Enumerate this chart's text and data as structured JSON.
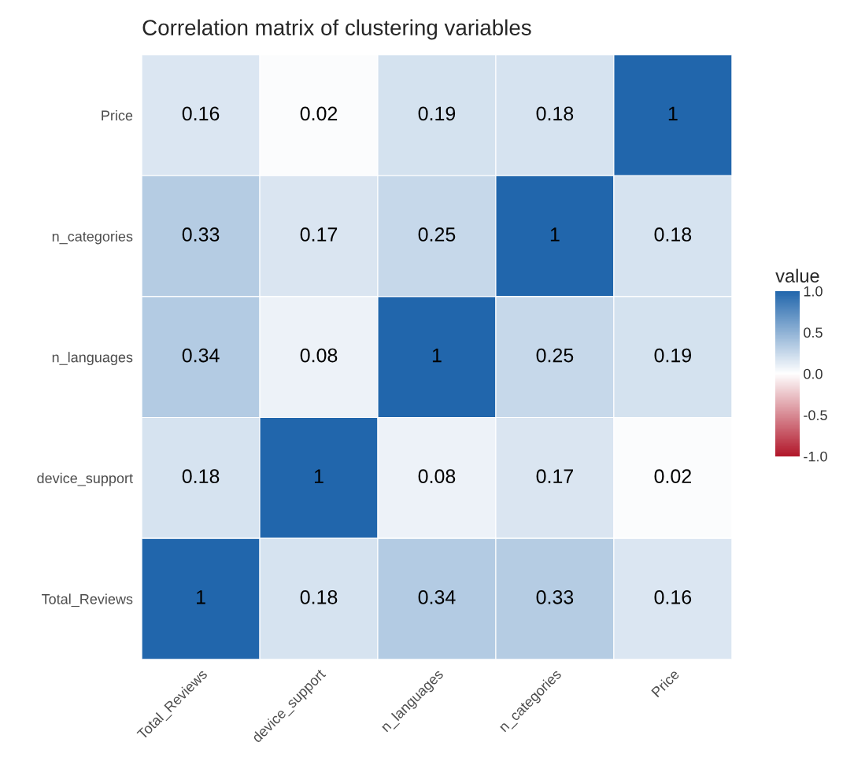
{
  "chart_data": {
    "type": "heatmap",
    "title": "Correlation matrix of clustering variables",
    "categories": [
      "Total_Reviews",
      "device_support",
      "n_languages",
      "n_categories",
      "Price"
    ],
    "y_categories": [
      "Price",
      "n_categories",
      "n_languages",
      "device_support",
      "Total_Reviews"
    ],
    "cells": [
      [
        0.16,
        0.02,
        0.19,
        0.18,
        1
      ],
      [
        0.33,
        0.17,
        0.25,
        1,
        0.18
      ],
      [
        0.34,
        0.08,
        1,
        0.25,
        0.19
      ],
      [
        0.18,
        1,
        0.08,
        0.17,
        0.02
      ],
      [
        1,
        0.18,
        0.34,
        0.33,
        0.16
      ]
    ],
    "data_labels": true,
    "clabel": "value",
    "clim": [
      -1,
      1
    ],
    "cticks": [
      {
        "value": 1,
        "label": "1.0"
      },
      0.5,
      {
        "value": 0,
        "label": "0.0"
      },
      -0.5,
      {
        "value": -1,
        "label": "-1.0"
      }
    ]
  }
}
